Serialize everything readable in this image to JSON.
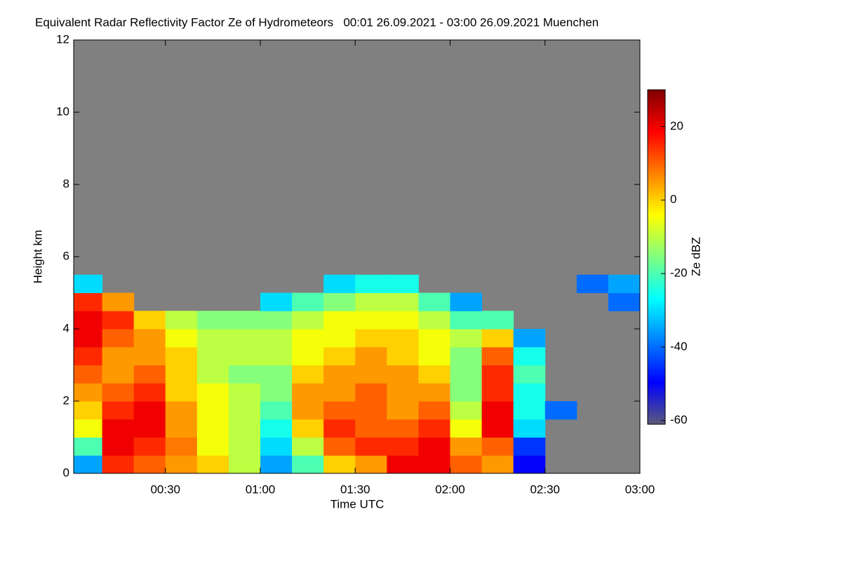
{
  "chart_data": {
    "type": "heatmap",
    "title": "Equivalent Radar Reflectivity Factor Ze of Hydrometeors   00:01 26.09.2021 - 03:00 26.09.2021 Muenchen",
    "x_label": "Time UTC",
    "y_label": "Height km",
    "colorbar_label": "Ze dBZ",
    "xlim": [
      1,
      180
    ],
    "xticks": [
      {
        "value": 30,
        "label": "00:30"
      },
      {
        "value": 60,
        "label": "01:00"
      },
      {
        "value": 90,
        "label": "01:30"
      },
      {
        "value": 120,
        "label": "02:00"
      },
      {
        "value": 150,
        "label": "02:30"
      },
      {
        "value": 180,
        "label": "03:00"
      }
    ],
    "ylim": [
      0,
      12
    ],
    "yticks": [
      0,
      2,
      4,
      6,
      8,
      10,
      12
    ],
    "clim": [
      -61,
      30
    ],
    "cticks": [
      -60,
      -40,
      -20,
      0,
      20
    ],
    "background": "#808080",
    "colormap": [
      "#5a5a7a",
      "#0000ff",
      "#0080ff",
      "#00ffff",
      "#80ff80",
      "#ffff00",
      "#ff8000",
      "#ff0000",
      "#800000"
    ],
    "xbins": [
      1,
      10,
      20,
      30,
      40,
      50,
      60,
      70,
      80,
      90,
      100,
      110,
      120,
      130,
      140,
      150,
      160,
      170,
      180
    ],
    "ybins": [
      0,
      0.5,
      1,
      1.5,
      2,
      2.5,
      3,
      3.5,
      4,
      4.5,
      5,
      5.5,
      6
    ],
    "z": [
      [
        -35,
        15,
        10,
        5,
        0,
        -10,
        -35,
        -20,
        0,
        5,
        20,
        20,
        10,
        5,
        -50,
        null,
        null,
        null
      ],
      [
        -20,
        20,
        15,
        8,
        -5,
        -10,
        -30,
        -10,
        10,
        15,
        15,
        20,
        5,
        10,
        -45,
        null,
        null,
        null
      ],
      [
        -5,
        20,
        20,
        5,
        -5,
        -10,
        -25,
        0,
        15,
        10,
        10,
        15,
        -5,
        20,
        -30,
        null,
        null,
        null
      ],
      [
        0,
        15,
        20,
        5,
        -5,
        -10,
        -20,
        5,
        10,
        10,
        5,
        10,
        -10,
        20,
        -25,
        -40,
        null,
        null
      ],
      [
        5,
        10,
        15,
        0,
        -5,
        -10,
        -15,
        5,
        5,
        10,
        5,
        5,
        -15,
        15,
        -25,
        null,
        null,
        null
      ],
      [
        10,
        5,
        10,
        0,
        -10,
        -15,
        -15,
        0,
        5,
        5,
        5,
        0,
        -15,
        15,
        -20,
        null,
        null,
        null
      ],
      [
        15,
        5,
        5,
        0,
        -10,
        -10,
        -10,
        -5,
        0,
        5,
        0,
        -5,
        -15,
        10,
        -25,
        null,
        null,
        null
      ],
      [
        20,
        10,
        5,
        -5,
        -10,
        -10,
        -10,
        -5,
        -5,
        0,
        0,
        -5,
        -10,
        0,
        -35,
        null,
        null,
        null
      ],
      [
        20,
        15,
        0,
        -10,
        -15,
        -15,
        -15,
        -10,
        -5,
        -5,
        -5,
        -10,
        -20,
        -20,
        null,
        null,
        null,
        null
      ],
      [
        15,
        5,
        null,
        null,
        null,
        null,
        -30,
        -20,
        -15,
        -10,
        -10,
        -20,
        -35,
        null,
        null,
        null,
        null,
        -40
      ],
      [
        -30,
        null,
        null,
        null,
        null,
        null,
        null,
        null,
        -30,
        -25,
        -25,
        null,
        null,
        null,
        null,
        null,
        -40,
        -35
      ],
      [
        null,
        null,
        null,
        null,
        null,
        null,
        null,
        null,
        null,
        null,
        null,
        null,
        null,
        null,
        null,
        null,
        null,
        null
      ]
    ]
  }
}
